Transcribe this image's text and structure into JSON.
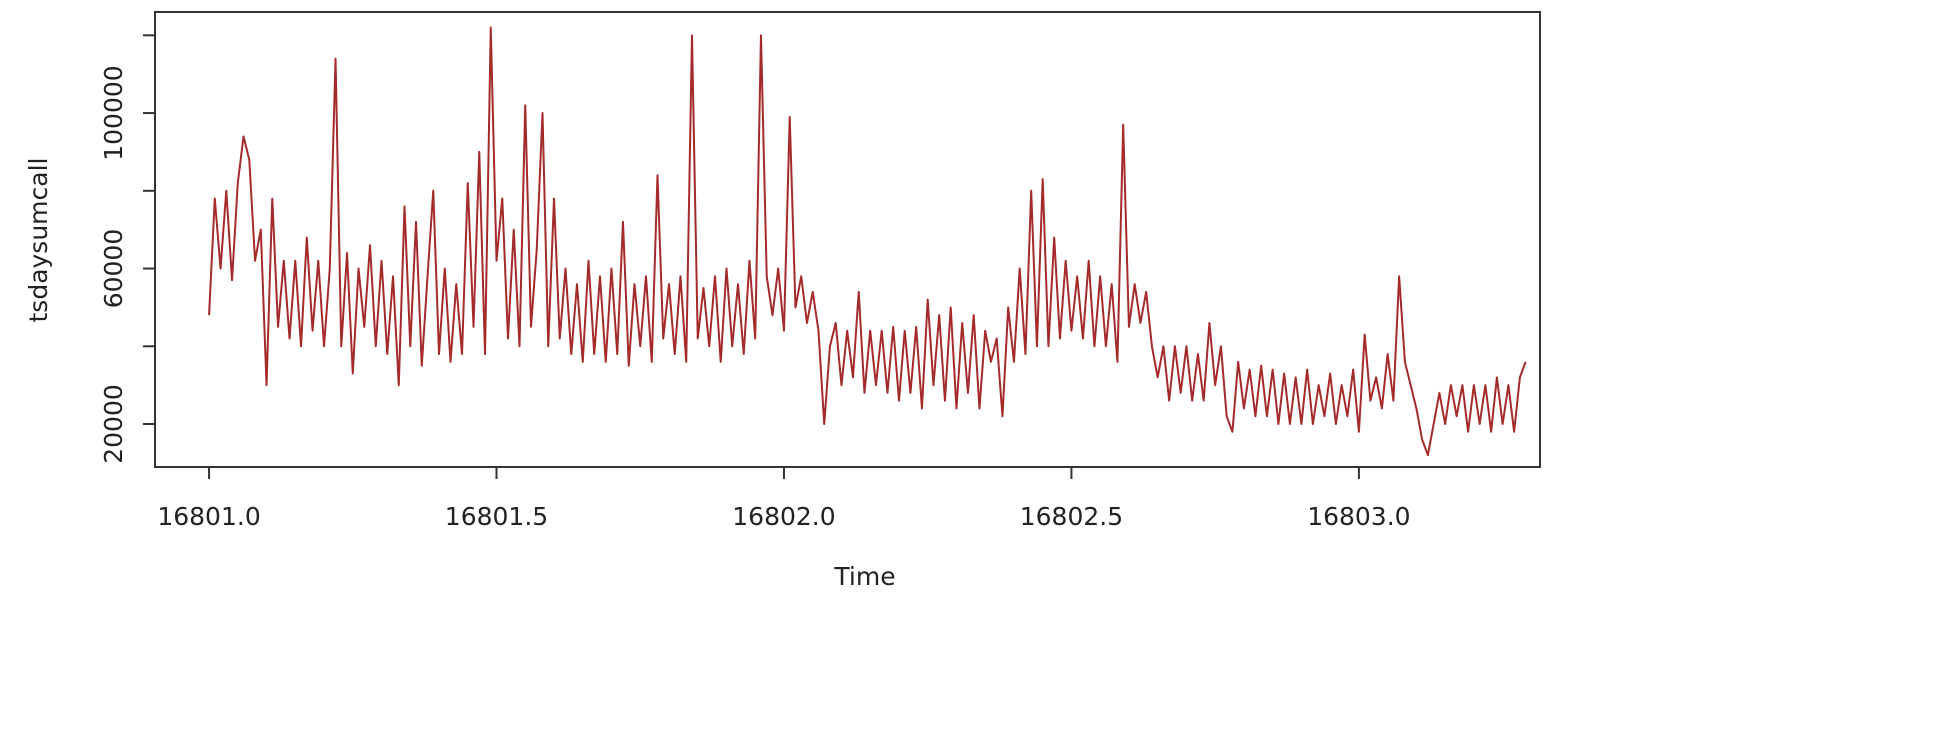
{
  "chart_data": {
    "type": "line",
    "x_label": "Time",
    "y_label": "tsdaysumcall",
    "color": "#a52a2a",
    "xlim": [
      16800.906,
      16803.315
    ],
    "ylim": [
      8940,
      126000
    ],
    "xticks": [
      {
        "value": 16801,
        "label": "16801.0"
      },
      16801.5,
      {
        "value": 16802,
        "label": "16802.0"
      },
      16802.5,
      {
        "value": 16803,
        "label": "16803.0"
      }
    ],
    "yticks": [
      20000,
      {
        "value": 40000,
        "label": null
      },
      60000,
      {
        "value": 80000,
        "label": null
      },
      100000,
      {
        "value": 120000,
        "label": null
      }
    ],
    "x": [
      16801,
      16801.01,
      16801.02,
      16801.03,
      16801.04,
      16801.05,
      16801.06,
      16801.07,
      16801.08,
      16801.09,
      16801.1,
      16801.11,
      16801.12,
      16801.13,
      16801.14,
      16801.15,
      16801.16,
      16801.17,
      16801.18,
      16801.19,
      16801.2,
      16801.21,
      16801.22,
      16801.23,
      16801.24,
      16801.25,
      16801.26,
      16801.27,
      16801.28,
      16801.29,
      16801.3,
      16801.31,
      16801.32,
      16801.33,
      16801.34,
      16801.35,
      16801.36,
      16801.37,
      16801.38,
      16801.39,
      16801.4,
      16801.41,
      16801.42,
      16801.43,
      16801.44,
      16801.45,
      16801.46,
      16801.47,
      16801.48,
      16801.49,
      16801.5,
      16801.51,
      16801.52,
      16801.53,
      16801.54,
      16801.55,
      16801.56,
      16801.57,
      16801.58,
      16801.59,
      16801.6,
      16801.61,
      16801.62,
      16801.63,
      16801.64,
      16801.65,
      16801.66,
      16801.67,
      16801.68,
      16801.69,
      16801.7,
      16801.71,
      16801.72,
      16801.73,
      16801.74,
      16801.75,
      16801.76,
      16801.77,
      16801.78,
      16801.79,
      16801.8,
      16801.81,
      16801.82,
      16801.83,
      16801.84,
      16801.85,
      16801.86,
      16801.87,
      16801.88,
      16801.89,
      16801.9,
      16801.91,
      16801.92,
      16801.93,
      16801.94,
      16801.95,
      16801.96,
      16801.97,
      16801.98,
      16801.99,
      16802,
      16802.01,
      16802.02,
      16802.03,
      16802.04,
      16802.05,
      16802.06,
      16802.07,
      16802.08,
      16802.09,
      16802.1,
      16802.11,
      16802.12,
      16802.13,
      16802.14,
      16802.15,
      16802.16,
      16802.17,
      16802.18,
      16802.19,
      16802.2,
      16802.21,
      16802.22,
      16802.23,
      16802.24,
      16802.25,
      16802.26,
      16802.27,
      16802.28,
      16802.29,
      16802.3,
      16802.31,
      16802.32,
      16802.33,
      16802.34,
      16802.35,
      16802.36,
      16802.37,
      16802.38,
      16802.39,
      16802.4,
      16802.41,
      16802.42,
      16802.43,
      16802.44,
      16802.45,
      16802.46,
      16802.47,
      16802.48,
      16802.49,
      16802.5,
      16802.51,
      16802.52,
      16802.53,
      16802.54,
      16802.55,
      16802.56,
      16802.57,
      16802.58,
      16802.59,
      16802.6,
      16802.61,
      16802.62,
      16802.63,
      16802.64,
      16802.65,
      16802.66,
      16802.67,
      16802.68,
      16802.69,
      16802.7,
      16802.71,
      16802.72,
      16802.73,
      16802.74,
      16802.75,
      16802.76,
      16802.77,
      16802.78,
      16802.79,
      16802.8,
      16802.81,
      16802.82,
      16802.83,
      16802.84,
      16802.85,
      16802.86,
      16802.87,
      16802.88,
      16802.89,
      16802.9,
      16802.91,
      16802.92,
      16802.93,
      16802.94,
      16802.95,
      16802.96,
      16802.97,
      16802.98,
      16802.99,
      16803,
      16803.01,
      16803.02,
      16803.03,
      16803.04,
      16803.05,
      16803.06,
      16803.07,
      16803.08,
      16803.09,
      16803.1,
      16803.11,
      16803.12,
      16803.13,
      16803.14,
      16803.15,
      16803.16,
      16803.17,
      16803.18,
      16803.19,
      16803.2,
      16803.21,
      16803.22,
      16803.23,
      16803.24,
      16803.25,
      16803.26,
      16803.27,
      16803.28,
      16803.29
    ],
    "values": [
      48000,
      78000,
      60000,
      80000,
      57000,
      82000,
      94000,
      88000,
      62000,
      70000,
      30000,
      78000,
      45000,
      62000,
      42000,
      62000,
      40000,
      68000,
      44000,
      62000,
      40000,
      60000,
      114000,
      40000,
      64000,
      33000,
      60000,
      45000,
      66000,
      40000,
      62000,
      38000,
      58000,
      30000,
      76000,
      40000,
      72000,
      35000,
      58000,
      80000,
      38000,
      60000,
      36000,
      56000,
      38000,
      82000,
      45000,
      90000,
      38000,
      122000,
      62000,
      78000,
      42000,
      70000,
      40000,
      102000,
      45000,
      65000,
      100000,
      40000,
      78000,
      42000,
      60000,
      38000,
      56000,
      36000,
      62000,
      38000,
      58000,
      36000,
      60000,
      38000,
      72000,
      35000,
      56000,
      40000,
      58000,
      36000,
      84000,
      42000,
      56000,
      38000,
      58000,
      36000,
      120000,
      42000,
      55000,
      40000,
      58000,
      36000,
      60000,
      40000,
      56000,
      38000,
      62000,
      42000,
      120000,
      58000,
      48000,
      60000,
      44000,
      99000,
      50000,
      58000,
      46000,
      54000,
      44000,
      20000,
      40000,
      46000,
      30000,
      44000,
      32000,
      54000,
      28000,
      44000,
      30000,
      44000,
      28000,
      45000,
      26000,
      44000,
      28000,
      45000,
      24000,
      52000,
      30000,
      48000,
      26000,
      50000,
      24000,
      46000,
      28000,
      48000,
      24000,
      44000,
      36000,
      42000,
      22000,
      50000,
      36000,
      60000,
      38000,
      80000,
      40000,
      83000,
      40000,
      68000,
      42000,
      62000,
      44000,
      58000,
      42000,
      62000,
      40000,
      58000,
      40000,
      56000,
      36000,
      97000,
      45000,
      56000,
      46000,
      54000,
      40000,
      32000,
      40000,
      26000,
      40000,
      28000,
      40000,
      26000,
      38000,
      26000,
      46000,
      30000,
      40000,
      22000,
      18000,
      36000,
      24000,
      34000,
      22000,
      35000,
      22000,
      34000,
      20000,
      33000,
      20000,
      32000,
      20000,
      34000,
      20000,
      30000,
      22000,
      33000,
      20000,
      30000,
      22000,
      34000,
      18000,
      43000,
      26000,
      32000,
      24000,
      38000,
      26000,
      58000,
      36000,
      30000,
      24000,
      16000,
      12000,
      20000,
      28000,
      20000,
      30000,
      22000,
      30000,
      18000,
      30000,
      20000,
      30000,
      18000,
      32000,
      20000,
      30000,
      18000,
      32000,
      36000
    ]
  }
}
